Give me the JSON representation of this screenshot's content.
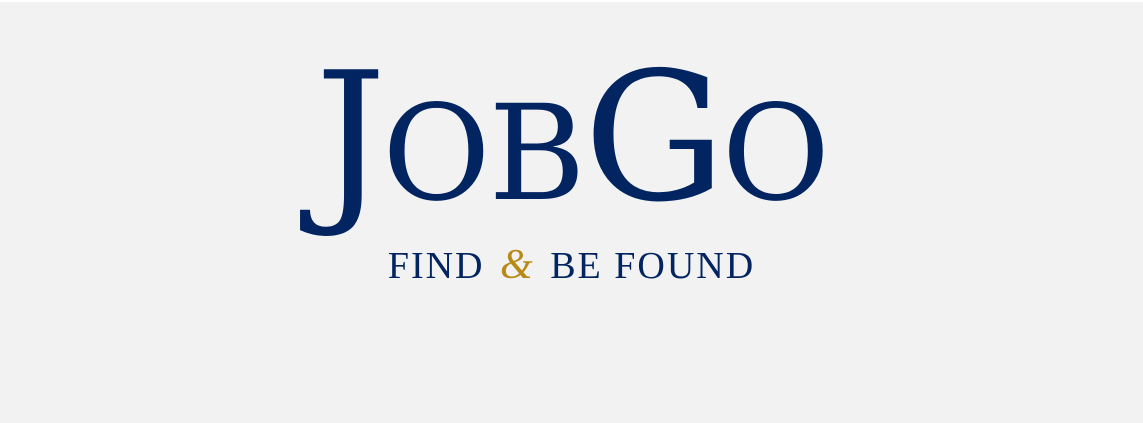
{
  "brand": {
    "name_part1_cap": "J",
    "name_part1_rest": "OB",
    "name_part2_cap": "G",
    "name_part2_rest": "O",
    "tagline_before": "FIND",
    "tagline_amp": "&",
    "tagline_after": "BE FOUND"
  },
  "colors": {
    "navy": "#022460",
    "gold": "#b98916",
    "background": "#f2f2f2"
  }
}
